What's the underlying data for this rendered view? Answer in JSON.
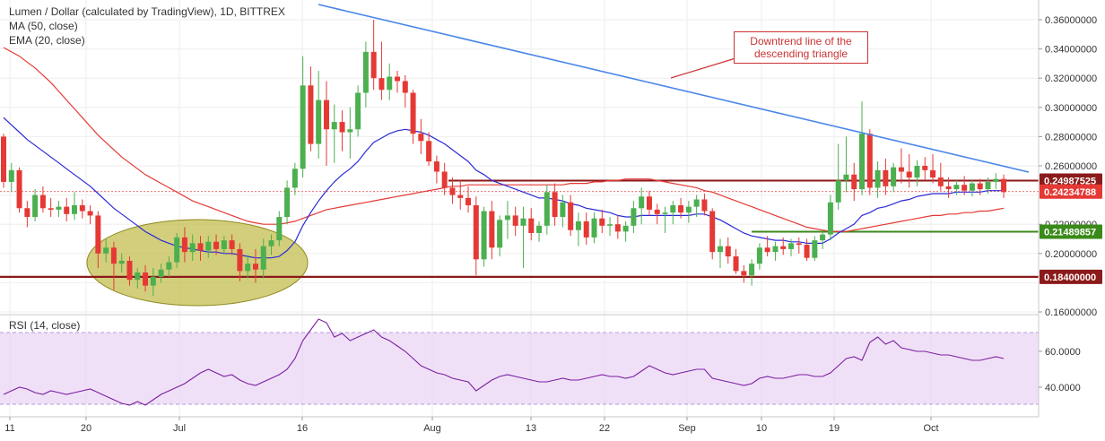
{
  "legend": {
    "title": "Lumen / Dollar (calculated by TradingView), 1D, BITTREX",
    "ma": "MA (50, close)",
    "ema": "EMA (20, close)"
  },
  "rsi_label": "RSI (14, close)",
  "annotation": {
    "line1": "Downtrend line of the",
    "line2": "descending triangle"
  },
  "colors": {
    "up": "#4caf50",
    "down": "#e53935",
    "ma50": "#e53935",
    "ema20": "#2a2ad8",
    "trendline": "#4a86e8",
    "resistance": "#8b1a1a",
    "support_green": "#3a8a1a",
    "rsi": "#7b1fa2"
  },
  "chart_data": {
    "type": "candlestick",
    "price_axis": {
      "ticks": [
        "0.36000000",
        "0.34000000",
        "0.32000000",
        "0.30000000",
        "0.28000000",
        "0.26000000",
        "0.22000000",
        "0.20000000",
        "0.16000000"
      ],
      "ylim": [
        0.15,
        0.37
      ]
    },
    "rsi_axis": {
      "ticks": [
        "60.0000",
        "40.0000"
      ],
      "ylim": [
        25,
        80
      ]
    },
    "x_ticks": [
      "11",
      "20",
      "Jul",
      "16",
      "Aug",
      "13",
      "22",
      "Sep",
      "10",
      "19",
      "Oct"
    ],
    "price_tags": [
      {
        "label": "0.24987525",
        "value": 0.24987525,
        "style": "resistance"
      },
      {
        "label": "0.24234788",
        "value": 0.24234788,
        "style": "current"
      },
      {
        "label": "0.21489857",
        "value": 0.21489857,
        "style": "support_green"
      },
      {
        "label": "0.18400000",
        "value": 0.184,
        "style": "resistance"
      }
    ],
    "candles": [
      [
        0.28,
        0.282,
        0.245,
        0.249
      ],
      [
        0.249,
        0.262,
        0.242,
        0.257
      ],
      [
        0.257,
        0.259,
        0.228,
        0.231
      ],
      [
        0.231,
        0.236,
        0.218,
        0.225
      ],
      [
        0.225,
        0.244,
        0.222,
        0.24
      ],
      [
        0.24,
        0.246,
        0.228,
        0.231
      ],
      [
        0.231,
        0.238,
        0.225,
        0.23
      ],
      [
        0.23,
        0.236,
        0.225,
        0.232
      ],
      [
        0.232,
        0.238,
        0.222,
        0.227
      ],
      [
        0.227,
        0.242,
        0.223,
        0.233
      ],
      [
        0.233,
        0.237,
        0.224,
        0.229
      ],
      [
        0.229,
        0.233,
        0.22,
        0.226
      ],
      [
        0.226,
        0.229,
        0.19,
        0.2
      ],
      [
        0.2,
        0.21,
        0.194,
        0.204
      ],
      [
        0.204,
        0.208,
        0.175,
        0.193
      ],
      [
        0.193,
        0.2,
        0.187,
        0.195
      ],
      [
        0.195,
        0.198,
        0.178,
        0.182
      ],
      [
        0.182,
        0.19,
        0.176,
        0.187
      ],
      [
        0.187,
        0.192,
        0.174,
        0.178
      ],
      [
        0.178,
        0.19,
        0.171,
        0.184
      ],
      [
        0.184,
        0.193,
        0.18,
        0.189
      ],
      [
        0.189,
        0.198,
        0.184,
        0.194
      ],
      [
        0.194,
        0.214,
        0.19,
        0.211
      ],
      [
        0.211,
        0.218,
        0.194,
        0.201
      ],
      [
        0.201,
        0.213,
        0.195,
        0.207
      ],
      [
        0.207,
        0.212,
        0.195,
        0.202
      ],
      [
        0.202,
        0.212,
        0.197,
        0.208
      ],
      [
        0.208,
        0.213,
        0.199,
        0.203
      ],
      [
        0.203,
        0.212,
        0.2,
        0.209
      ],
      [
        0.209,
        0.213,
        0.199,
        0.203
      ],
      [
        0.203,
        0.207,
        0.181,
        0.188
      ],
      [
        0.188,
        0.199,
        0.183,
        0.193
      ],
      [
        0.193,
        0.203,
        0.18,
        0.189
      ],
      [
        0.189,
        0.21,
        0.183,
        0.205
      ],
      [
        0.205,
        0.213,
        0.199,
        0.209
      ],
      [
        0.209,
        0.229,
        0.205,
        0.225
      ],
      [
        0.225,
        0.25,
        0.22,
        0.245
      ],
      [
        0.245,
        0.262,
        0.24,
        0.258
      ],
      [
        0.258,
        0.335,
        0.252,
        0.315
      ],
      [
        0.315,
        0.328,
        0.27,
        0.275
      ],
      [
        0.275,
        0.325,
        0.265,
        0.305
      ],
      [
        0.305,
        0.318,
        0.26,
        0.285
      ],
      [
        0.285,
        0.302,
        0.262,
        0.29
      ],
      [
        0.29,
        0.298,
        0.27,
        0.283
      ],
      [
        0.283,
        0.3,
        0.265,
        0.285
      ],
      [
        0.285,
        0.315,
        0.28,
        0.31
      ],
      [
        0.31,
        0.345,
        0.3,
        0.338
      ],
      [
        0.338,
        0.36,
        0.312,
        0.32
      ],
      [
        0.32,
        0.345,
        0.305,
        0.312
      ],
      [
        0.312,
        0.33,
        0.305,
        0.321
      ],
      [
        0.321,
        0.325,
        0.31,
        0.318
      ],
      [
        0.318,
        0.322,
        0.3,
        0.31
      ],
      [
        0.31,
        0.312,
        0.275,
        0.282
      ],
      [
        0.282,
        0.292,
        0.268,
        0.277
      ],
      [
        0.277,
        0.283,
        0.26,
        0.263
      ],
      [
        0.263,
        0.267,
        0.248,
        0.256
      ],
      [
        0.256,
        0.262,
        0.24,
        0.245
      ],
      [
        0.245,
        0.252,
        0.234,
        0.24
      ],
      [
        0.24,
        0.25,
        0.23,
        0.238
      ],
      [
        0.238,
        0.246,
        0.228,
        0.233
      ],
      [
        0.233,
        0.239,
        0.185,
        0.196
      ],
      [
        0.196,
        0.232,
        0.191,
        0.229
      ],
      [
        0.229,
        0.236,
        0.196,
        0.204
      ],
      [
        0.204,
        0.226,
        0.198,
        0.223
      ],
      [
        0.223,
        0.236,
        0.21,
        0.226
      ],
      [
        0.226,
        0.232,
        0.212,
        0.219
      ],
      [
        0.219,
        0.232,
        0.19,
        0.224
      ],
      [
        0.224,
        0.231,
        0.209,
        0.214
      ],
      [
        0.214,
        0.222,
        0.208,
        0.219
      ],
      [
        0.219,
        0.247,
        0.213,
        0.242
      ],
      [
        0.242,
        0.248,
        0.219,
        0.225
      ],
      [
        0.225,
        0.24,
        0.218,
        0.235
      ],
      [
        0.235,
        0.24,
        0.212,
        0.216
      ],
      [
        0.216,
        0.228,
        0.205,
        0.222
      ],
      [
        0.222,
        0.228,
        0.206,
        0.211
      ],
      [
        0.211,
        0.228,
        0.207,
        0.224
      ],
      [
        0.224,
        0.23,
        0.214,
        0.219
      ],
      [
        0.219,
        0.225,
        0.212,
        0.22
      ],
      [
        0.22,
        0.226,
        0.21,
        0.215
      ],
      [
        0.215,
        0.222,
        0.208,
        0.219
      ],
      [
        0.219,
        0.236,
        0.214,
        0.231
      ],
      [
        0.231,
        0.245,
        0.22,
        0.239
      ],
      [
        0.239,
        0.243,
        0.226,
        0.23
      ],
      [
        0.23,
        0.234,
        0.22,
        0.227
      ],
      [
        0.227,
        0.232,
        0.214,
        0.228
      ],
      [
        0.228,
        0.236,
        0.22,
        0.233
      ],
      [
        0.233,
        0.238,
        0.224,
        0.228
      ],
      [
        0.228,
        0.236,
        0.221,
        0.232
      ],
      [
        0.232,
        0.24,
        0.225,
        0.237
      ],
      [
        0.237,
        0.241,
        0.226,
        0.229
      ],
      [
        0.229,
        0.231,
        0.196,
        0.201
      ],
      [
        0.201,
        0.21,
        0.19,
        0.205
      ],
      [
        0.205,
        0.211,
        0.193,
        0.198
      ],
      [
        0.198,
        0.203,
        0.186,
        0.188
      ],
      [
        0.188,
        0.192,
        0.18,
        0.185
      ],
      [
        0.185,
        0.196,
        0.178,
        0.193
      ],
      [
        0.193,
        0.207,
        0.189,
        0.204
      ],
      [
        0.204,
        0.212,
        0.198,
        0.201
      ],
      [
        0.201,
        0.208,
        0.195,
        0.205
      ],
      [
        0.205,
        0.211,
        0.199,
        0.203
      ],
      [
        0.203,
        0.21,
        0.198,
        0.207
      ],
      [
        0.207,
        0.211,
        0.2,
        0.206
      ],
      [
        0.206,
        0.21,
        0.195,
        0.197
      ],
      [
        0.197,
        0.212,
        0.195,
        0.209
      ],
      [
        0.209,
        0.216,
        0.203,
        0.213
      ],
      [
        0.213,
        0.24,
        0.209,
        0.235
      ],
      [
        0.235,
        0.275,
        0.23,
        0.25
      ],
      [
        0.25,
        0.28,
        0.242,
        0.254
      ],
      [
        0.254,
        0.262,
        0.236,
        0.244
      ],
      [
        0.244,
        0.304,
        0.24,
        0.282
      ],
      [
        0.282,
        0.285,
        0.24,
        0.245
      ],
      [
        0.245,
        0.263,
        0.238,
        0.257
      ],
      [
        0.257,
        0.265,
        0.24,
        0.246
      ],
      [
        0.246,
        0.262,
        0.242,
        0.259
      ],
      [
        0.259,
        0.272,
        0.248,
        0.256
      ],
      [
        0.256,
        0.268,
        0.245,
        0.252
      ],
      [
        0.252,
        0.264,
        0.246,
        0.26
      ],
      [
        0.26,
        0.266,
        0.25,
        0.257
      ],
      [
        0.257,
        0.268,
        0.248,
        0.252
      ],
      [
        0.252,
        0.262,
        0.243,
        0.246
      ],
      [
        0.246,
        0.252,
        0.238,
        0.244
      ],
      [
        0.244,
        0.25,
        0.24,
        0.247
      ],
      [
        0.247,
        0.253,
        0.24,
        0.243
      ],
      [
        0.243,
        0.25,
        0.239,
        0.248
      ],
      [
        0.248,
        0.251,
        0.24,
        0.244
      ],
      [
        0.244,
        0.252,
        0.241,
        0.249
      ],
      [
        0.249,
        0.255,
        0.244,
        0.251
      ],
      [
        0.251,
        0.254,
        0.238,
        0.242
      ]
    ],
    "ema20": [
      0.293,
      0.288,
      0.283,
      0.278,
      0.274,
      0.27,
      0.266,
      0.262,
      0.258,
      0.254,
      0.25,
      0.246,
      0.241,
      0.236,
      0.231,
      0.227,
      0.223,
      0.219,
      0.215,
      0.212,
      0.209,
      0.207,
      0.205,
      0.204,
      0.203,
      0.202,
      0.201,
      0.201,
      0.2,
      0.2,
      0.199,
      0.198,
      0.197,
      0.197,
      0.197,
      0.198,
      0.202,
      0.208,
      0.219,
      0.228,
      0.236,
      0.243,
      0.249,
      0.254,
      0.258,
      0.263,
      0.27,
      0.276,
      0.279,
      0.282,
      0.284,
      0.285,
      0.284,
      0.283,
      0.281,
      0.278,
      0.275,
      0.271,
      0.267,
      0.263,
      0.257,
      0.254,
      0.25,
      0.248,
      0.246,
      0.244,
      0.242,
      0.24,
      0.238,
      0.238,
      0.237,
      0.236,
      0.234,
      0.233,
      0.231,
      0.23,
      0.229,
      0.228,
      0.226,
      0.225,
      0.225,
      0.226,
      0.226,
      0.226,
      0.226,
      0.226,
      0.226,
      0.226,
      0.227,
      0.227,
      0.225,
      0.223,
      0.22,
      0.217,
      0.214,
      0.212,
      0.211,
      0.21,
      0.209,
      0.209,
      0.208,
      0.208,
      0.207,
      0.207,
      0.207,
      0.21,
      0.214,
      0.217,
      0.22,
      0.226,
      0.228,
      0.231,
      0.232,
      0.234,
      0.236,
      0.237,
      0.239,
      0.24,
      0.241,
      0.241,
      0.241,
      0.242,
      0.242,
      0.242,
      0.242,
      0.243,
      0.243,
      0.243
    ],
    "ma50": [
      0.341,
      0.338,
      0.335,
      0.331,
      0.327,
      0.322,
      0.317,
      0.311,
      0.305,
      0.299,
      0.293,
      0.287,
      0.281,
      0.276,
      0.271,
      0.266,
      0.262,
      0.258,
      0.254,
      0.251,
      0.248,
      0.245,
      0.242,
      0.239,
      0.236,
      0.234,
      0.232,
      0.23,
      0.228,
      0.226,
      0.224,
      0.222,
      0.221,
      0.22,
      0.22,
      0.22,
      0.221,
      0.222,
      0.224,
      0.226,
      0.228,
      0.23,
      0.231,
      0.232,
      0.233,
      0.234,
      0.235,
      0.236,
      0.237,
      0.238,
      0.239,
      0.24,
      0.241,
      0.242,
      0.243,
      0.244,
      0.245,
      0.246,
      0.246,
      0.247,
      0.247,
      0.247,
      0.247,
      0.247,
      0.247,
      0.247,
      0.247,
      0.247,
      0.247,
      0.247,
      0.247,
      0.247,
      0.248,
      0.248,
      0.248,
      0.249,
      0.249,
      0.25,
      0.25,
      0.251,
      0.251,
      0.251,
      0.251,
      0.25,
      0.249,
      0.248,
      0.247,
      0.246,
      0.245,
      0.243,
      0.242,
      0.24,
      0.238,
      0.236,
      0.234,
      0.232,
      0.23,
      0.228,
      0.226,
      0.224,
      0.222,
      0.22,
      0.218,
      0.217,
      0.216,
      0.215,
      0.215,
      0.215,
      0.216,
      0.217,
      0.218,
      0.219,
      0.22,
      0.221,
      0.222,
      0.223,
      0.224,
      0.225,
      0.226,
      0.226,
      0.227,
      0.227,
      0.228,
      0.228,
      0.229,
      0.229,
      0.23,
      0.231
    ],
    "rsi": [
      36,
      38,
      40,
      39,
      37,
      36,
      38,
      37,
      36,
      37,
      38,
      39,
      37,
      35,
      33,
      31,
      30,
      32,
      30,
      33,
      36,
      38,
      40,
      42,
      45,
      48,
      50,
      48,
      46,
      47,
      44,
      42,
      41,
      43,
      45,
      47,
      50,
      56,
      66,
      72,
      78,
      76,
      68,
      70,
      66,
      68,
      70,
      72,
      68,
      66,
      63,
      60,
      56,
      52,
      50,
      48,
      47,
      45,
      44,
      43,
      38,
      41,
      44,
      46,
      47,
      46,
      45,
      44,
      43,
      43,
      44,
      45,
      44,
      44,
      45,
      46,
      47,
      46,
      46,
      45,
      46,
      49,
      52,
      50,
      48,
      47,
      48,
      49,
      50,
      50,
      45,
      44,
      43,
      42,
      41,
      42,
      45,
      46,
      45,
      45,
      46,
      47,
      47,
      46,
      46,
      48,
      52,
      56,
      57,
      55,
      65,
      68,
      64,
      66,
      62,
      61,
      60,
      60,
      59,
      58,
      58,
      57,
      56,
      55,
      55,
      56,
      57,
      56
    ]
  }
}
